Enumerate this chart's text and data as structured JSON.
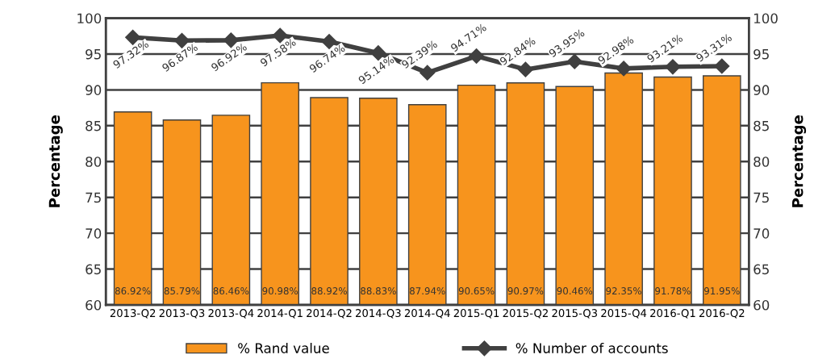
{
  "chart_data": {
    "type": "bar",
    "ylabel": "Percentage",
    "y2label": "Percentage",
    "categories": [
      "2013-Q2",
      "2013-Q3",
      "2013-Q4",
      "2014-Q1",
      "2014-Q2",
      "2014-Q3",
      "2014-Q4",
      "2015-Q1",
      "2015-Q2",
      "2015-Q3",
      "2015-Q4",
      "2016-Q1",
      "2016-Q2"
    ],
    "series": [
      {
        "name": "% Rand value",
        "color": "#f7941d",
        "values": [
          86.92,
          85.79,
          86.46,
          90.98,
          88.92,
          88.83,
          87.94,
          90.65,
          90.97,
          90.46,
          92.35,
          91.78,
          91.95
        ],
        "value_labels": [
          "86.92%",
          "85.79%",
          "86.46%",
          "90.98%",
          "88.92%",
          "88.83%",
          "87.94%",
          "90.65%",
          "90.97%",
          "90.46%",
          "92.35%",
          "91.78%",
          "91.95%"
        ]
      },
      {
        "name": "% Number of accounts",
        "type": "line",
        "color": "#404040",
        "marker": "diamond",
        "line_style": "solid",
        "values": [
          97.32,
          96.87,
          96.92,
          97.58,
          96.74,
          95.14,
          92.39,
          94.71,
          92.84,
          93.95,
          92.98,
          93.21,
          93.31
        ],
        "value_labels": [
          "97.32%",
          "96.87%",
          "96.92%",
          "97.58%",
          "96.74%",
          "95.14%",
          "92.39%",
          "94.71%",
          "92.84%",
          "93.95%",
          "92.98%",
          "93.21%",
          "93.31%"
        ]
      }
    ],
    "ylim": [
      60,
      100
    ],
    "yticks": [
      60,
      65,
      70,
      75,
      80,
      85,
      90,
      95,
      100
    ],
    "y2lim": [
      60,
      100
    ],
    "y2ticks": [
      60,
      65,
      70,
      75,
      80,
      85,
      90,
      95,
      100
    ],
    "grid": "y",
    "legend": "bottom"
  }
}
